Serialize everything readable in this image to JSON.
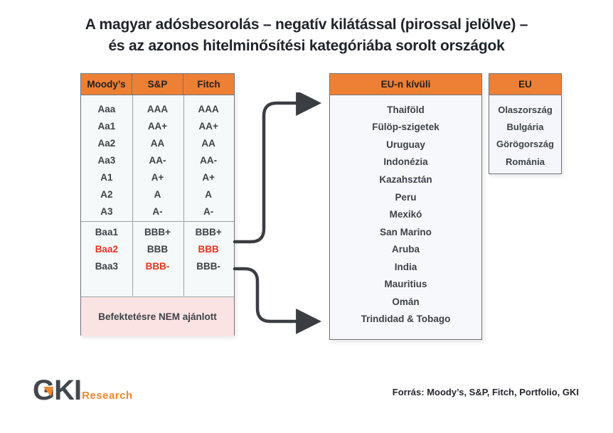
{
  "title": {
    "line1": "A magyar adósbesorolás – negatív kilátással (pirossal jelölve) –",
    "line2": "és az azonos hitelminősítési kategóriába sorolt országok"
  },
  "colors": {
    "accent_orange": "#EE8035",
    "negative_red": "#E8341F",
    "text_dark": "#3D4248",
    "pink_bg": "#FBE3E3"
  },
  "ratings_table": {
    "headers": [
      "Moody’s",
      "S&P",
      "Fitch"
    ],
    "groups": [
      {
        "id": "upper",
        "rows": [
          [
            {
              "t": "Aaa"
            },
            {
              "t": "AAA"
            },
            {
              "t": "AAA"
            }
          ],
          [
            {
              "t": "Aa1"
            },
            {
              "t": "AA+"
            },
            {
              "t": "AA+"
            }
          ],
          [
            {
              "t": "Aa2"
            },
            {
              "t": "AA"
            },
            {
              "t": "AA"
            }
          ],
          [
            {
              "t": "Aa3"
            },
            {
              "t": "AA-"
            },
            {
              "t": "AA-"
            }
          ],
          [
            {
              "t": "A1"
            },
            {
              "t": "A+"
            },
            {
              "t": "A+"
            }
          ],
          [
            {
              "t": "A2"
            },
            {
              "t": "A"
            },
            {
              "t": "A"
            }
          ],
          [
            {
              "t": "A3"
            },
            {
              "t": "A-"
            },
            {
              "t": "A-"
            }
          ]
        ]
      },
      {
        "id": "bbb",
        "rows": [
          [
            {
              "t": "Baa1"
            },
            {
              "t": "BBB+"
            },
            {
              "t": "BBB+"
            }
          ],
          [
            {
              "t": "Baa2",
              "neg": true
            },
            {
              "t": "BBB"
            },
            {
              "t": "BBB",
              "neg": true
            }
          ],
          [
            {
              "t": "Baa3"
            },
            {
              "t": "BBB-",
              "neg": true
            },
            {
              "t": "BBB-"
            }
          ]
        ]
      }
    ],
    "negative_outlook_note": "pirossal jelölve",
    "not_recommended": "Befektetésre NEM ajánlott"
  },
  "non_eu_table": {
    "header": "EU-n kívüli",
    "countries": [
      "Thaiföld",
      "Fülöp-szigetek",
      "Uruguay",
      "Indonézia",
      "Kazahsztán",
      "Peru",
      "Mexikó",
      "San Marino",
      "Aruba",
      "India",
      "Mauritius",
      "Omán",
      "Trindidad & Tobago"
    ]
  },
  "eu_table": {
    "header": "EU",
    "countries": [
      "Olaszország",
      "Bulgária",
      "Görögország",
      "Románia"
    ]
  },
  "footer": {
    "logo_text": "GKI",
    "logo_sub": "Research",
    "source": "Forrás: Moody’s, S&P, Fitch, Portfolio, GKI"
  }
}
